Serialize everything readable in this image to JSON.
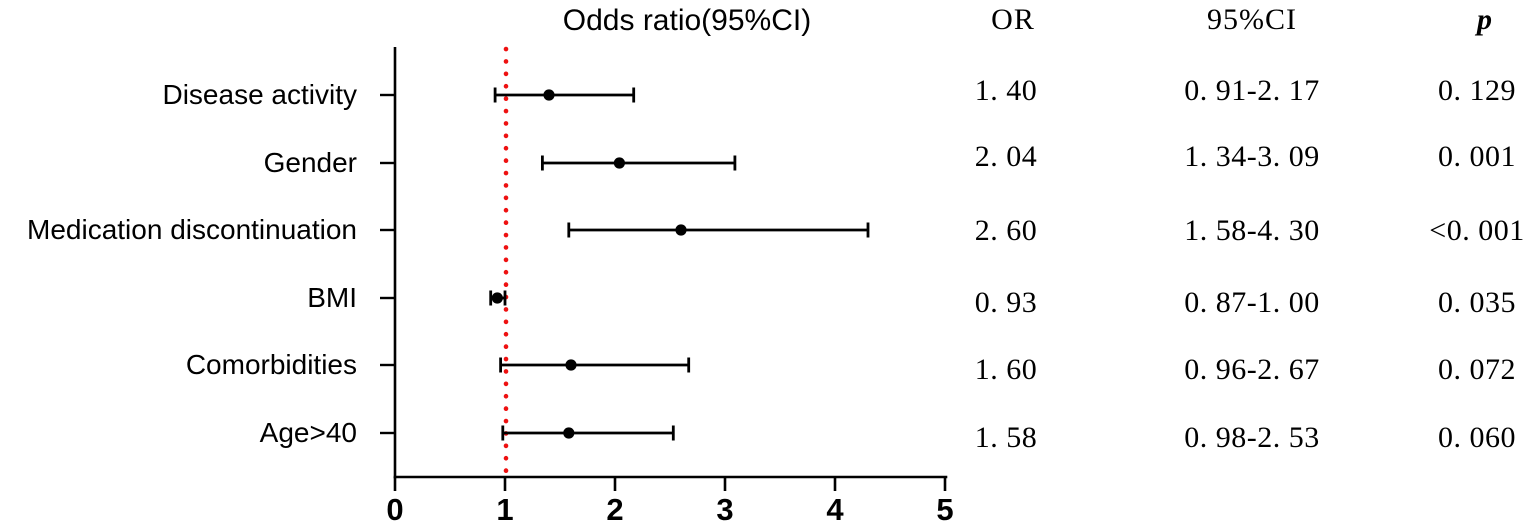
{
  "title": "Odds ratio(95%CI)",
  "table": {
    "headers": {
      "or": "OR",
      "ci": "95%CI",
      "p": "p"
    },
    "rows": [
      {
        "label": "Disease activity",
        "or": "1. 40",
        "ci": "0. 91-2. 17",
        "p": "0. 129"
      },
      {
        "label": "Gender",
        "or": "2. 04",
        "ci": "1. 34-3. 09",
        "p": "0. 001"
      },
      {
        "label": "Medication discontinuation",
        "or": "2. 60",
        "ci": "1. 58-4. 30",
        "p": "<0. 001"
      },
      {
        "label": "BMI",
        "or": "0. 93",
        "ci": "0. 87-1. 00",
        "p": "0. 035"
      },
      {
        "label": "Comorbidities",
        "or": "1. 60",
        "ci": "0. 96-2. 67",
        "p": "0. 072"
      },
      {
        "label": "Age>40",
        "or": "1. 58",
        "ci": "0. 98-2. 53",
        "p": "0. 060"
      }
    ]
  },
  "axis": {
    "ticks": [
      "0",
      "1",
      "2",
      "3",
      "4",
      "5"
    ]
  },
  "colors": {
    "reference_line": "#ee1111",
    "axis": "#000000",
    "marker": "#000000",
    "text": "#000000",
    "background": "#ffffff"
  },
  "chart_data": {
    "type": "scatter",
    "variant": "forest_plot",
    "title": "Odds ratio(95%CI)",
    "categories": [
      "Disease activity",
      "Gender",
      "Medication discontinuation",
      "BMI",
      "Comorbidities",
      "Age>40"
    ],
    "series": [
      {
        "name": "OR",
        "values": [
          1.4,
          2.04,
          2.6,
          0.93,
          1.6,
          1.58
        ]
      },
      {
        "name": "CI_lower",
        "values": [
          0.91,
          1.34,
          1.58,
          0.87,
          0.96,
          0.98
        ]
      },
      {
        "name": "CI_upper",
        "values": [
          2.17,
          3.09,
          4.3,
          1.0,
          2.67,
          2.53
        ]
      }
    ],
    "p_values": [
      "0.129",
      "0.001",
      "<0.001",
      "0.035",
      "0.072",
      "0.060"
    ],
    "xlabel": "",
    "ylabel": "",
    "xlim": [
      0,
      5
    ],
    "x_ticks": [
      0,
      1,
      2,
      3,
      4,
      5
    ],
    "reference_line_x": 1,
    "reference_line_style": "dotted-red",
    "marker": "filled-circle",
    "grid": false,
    "legend_position": "none",
    "orientation": "horizontal"
  }
}
